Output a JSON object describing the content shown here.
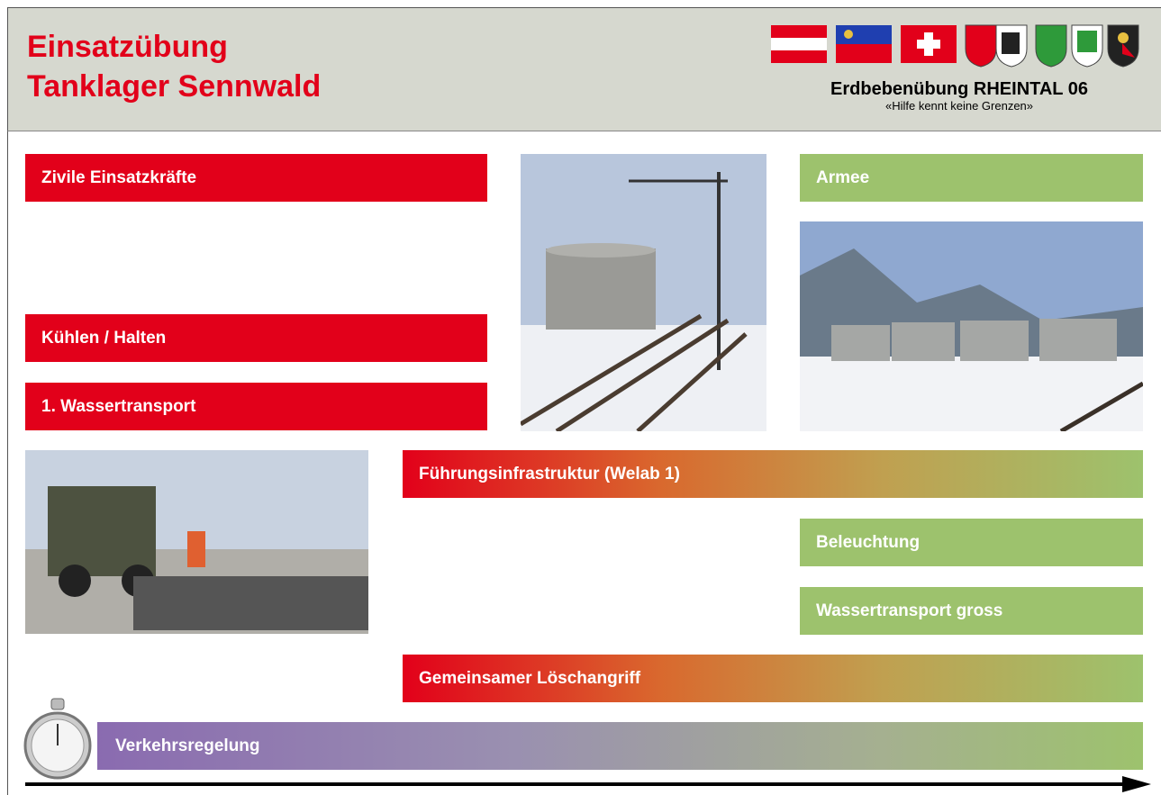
{
  "header": {
    "title_lines": [
      "Einsatzübung",
      "Tanklager Sennwald"
    ],
    "subtitle": "Erdbebenübung RHEINTAL 06",
    "tagline": "«Hilfe kennt keine Grenzen»"
  },
  "boxes": [
    {
      "label": "Zivile Einsatzkräfte"
    },
    {
      "label": "Kühlen / Halten"
    },
    {
      "label": "1. Wassertransport"
    },
    {
      "label": "Armee"
    },
    {
      "label": "Führungsinfrastruktur (Welab 1)"
    },
    {
      "label": "Beleuchtung"
    },
    {
      "label": "Wassertransport gross"
    },
    {
      "label": "Gemeinsamer Löschangriff"
    },
    {
      "label": "Verkehrsregelung"
    }
  ]
}
